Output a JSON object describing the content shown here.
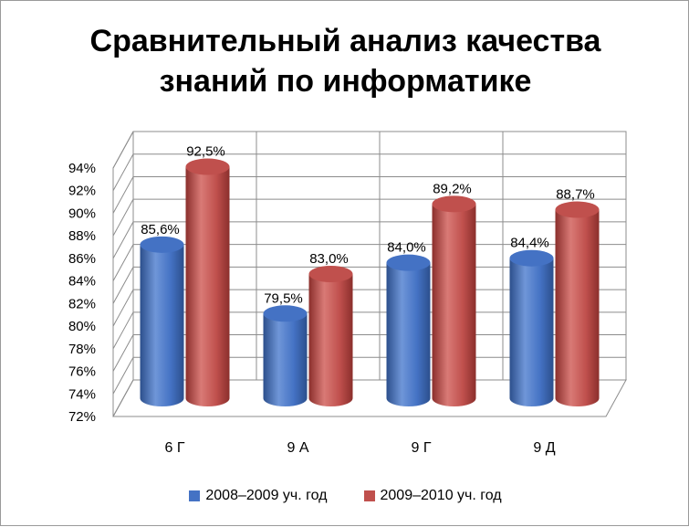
{
  "chart_data": {
    "type": "bar",
    "title_lines": [
      "Сравнительный анализ качества",
      "знаний по информатике"
    ],
    "categories": [
      "6 Г",
      "9 А",
      "9 Г",
      "9 Д"
    ],
    "series": [
      {
        "name": "2008–2009 уч. год",
        "values": [
          85.6,
          79.5,
          84.0,
          84.4
        ],
        "labels": [
          "85,6%",
          "79,5%",
          "84,0%",
          "84,4%"
        ],
        "color": "#4472C4"
      },
      {
        "name": "2009–2010 уч. год",
        "values": [
          92.5,
          83.0,
          89.2,
          88.7
        ],
        "labels": [
          "92,5%",
          "83,0%",
          "89,2%",
          "88,7%"
        ],
        "color": "#C0504D"
      }
    ],
    "y_ticks": [
      "72%",
      "74%",
      "76%",
      "78%",
      "80%",
      "82%",
      "84%",
      "86%",
      "88%",
      "90%",
      "92%",
      "94%"
    ],
    "ylim": [
      72,
      94
    ],
    "grid": true,
    "legend_position": "bottom"
  }
}
